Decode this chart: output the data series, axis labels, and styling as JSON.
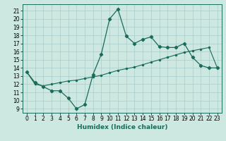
{
  "xlabel": "Humidex (Indice chaleur)",
  "bg_color": "#cce8e0",
  "grid_color": "#aacccc",
  "line_color": "#1a6b5a",
  "xlim": [
    -0.5,
    23.5
  ],
  "ylim": [
    8.5,
    21.8
  ],
  "yticks": [
    9,
    10,
    11,
    12,
    13,
    14,
    15,
    16,
    17,
    18,
    19,
    20,
    21
  ],
  "xticks": [
    0,
    1,
    2,
    3,
    4,
    5,
    6,
    7,
    8,
    9,
    10,
    11,
    12,
    13,
    14,
    15,
    16,
    17,
    18,
    19,
    20,
    21,
    22,
    23
  ],
  "series1_x": [
    0,
    1,
    2,
    3,
    4,
    5,
    6,
    7,
    8,
    9,
    10,
    11,
    12,
    13,
    14,
    15,
    16,
    17,
    18,
    19,
    20,
    21,
    22,
    23
  ],
  "series1_y": [
    13.5,
    12.2,
    11.7,
    11.2,
    11.2,
    10.3,
    9.0,
    9.5,
    13.2,
    15.7,
    20.0,
    21.2,
    17.9,
    17.0,
    17.5,
    17.8,
    16.6,
    16.5,
    16.5,
    17.0,
    15.3,
    14.3,
    14.0,
    14.0
  ],
  "series2_x": [
    0,
    1,
    2,
    3,
    4,
    5,
    6,
    7,
    8,
    9,
    10,
    11,
    12,
    13,
    14,
    15,
    16,
    17,
    18,
    19,
    20,
    21,
    22,
    23
  ],
  "series2_y": [
    13.5,
    12.0,
    11.8,
    12.0,
    12.2,
    12.4,
    12.5,
    12.7,
    12.9,
    13.1,
    13.4,
    13.7,
    13.9,
    14.1,
    14.4,
    14.7,
    15.0,
    15.3,
    15.6,
    15.9,
    16.1,
    16.3,
    16.5,
    14.0
  ],
  "tick_fontsize": 5.5,
  "xlabel_fontsize": 6.5
}
